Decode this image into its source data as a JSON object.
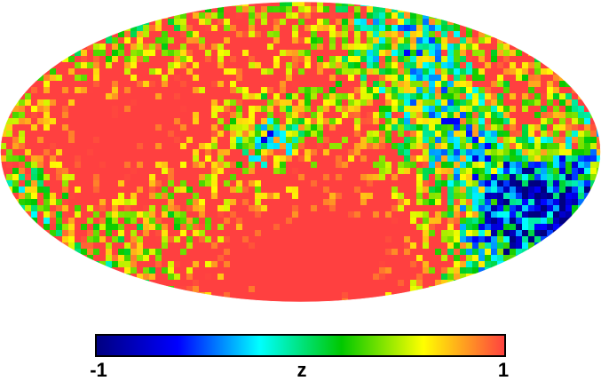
{
  "chart_data": {
    "type": "heatmap",
    "title": "",
    "projection": "mollweide",
    "colorbar": {
      "min": -1,
      "max": 1,
      "min_label": "-1",
      "max_label": "1",
      "label": "z",
      "placement": "bottom",
      "stops": [
        "#000080",
        "#0000ff",
        "#00ffff",
        "#00c800",
        "#ffff00",
        "#ff4040"
      ]
    },
    "background": "#ffffff",
    "dominant_value": 1
  }
}
